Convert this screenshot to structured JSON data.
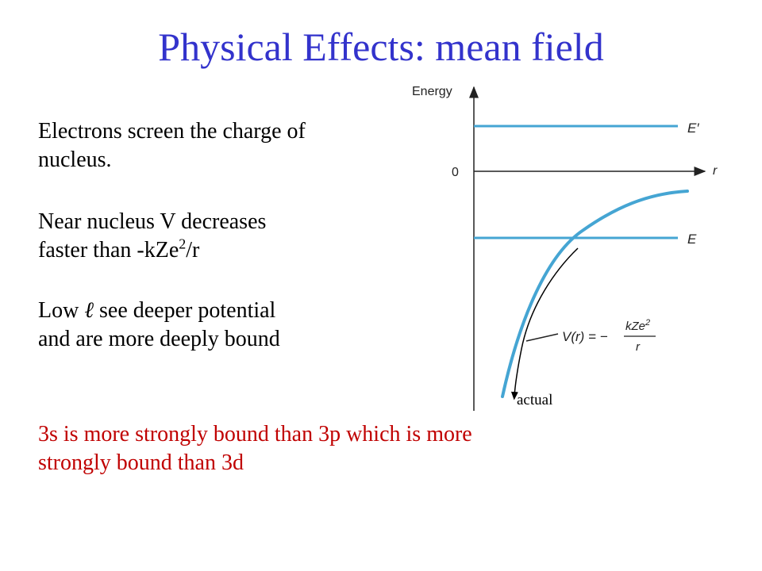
{
  "title": "Physical Effects: mean field",
  "paragraphs": {
    "p1_line1": "Electrons screen the charge of",
    "p1_line2": "nucleus.",
    "p2_line1": "Near nucleus V decreases",
    "p2_line2_pre": "faster than -kZe",
    "p2_line2_sup": "2",
    "p2_line2_post": "/r",
    "p3_line1_pre": "Low ",
    "p3_line1_symbol": "ℓ",
    "p3_line1_post": " see deeper potential",
    "p3_line2": "and are more deeply bound",
    "p4_line1": "3s is more strongly bound than 3p which is more",
    "p4_line2": "strongly bound than 3d"
  },
  "diagram": {
    "energy_label": "Energy",
    "zero_label": "0",
    "r_label": "r",
    "e_prime_label": "E′",
    "e_label": "E",
    "formula_lhs": "V(r) = −",
    "formula_numerator": "kZe",
    "formula_sup": "2",
    "formula_denominator": "r",
    "actual_label": "actual",
    "colors": {
      "level_line": "#45a5d3",
      "axis": "#222222",
      "actual_curve": "#000000"
    }
  }
}
